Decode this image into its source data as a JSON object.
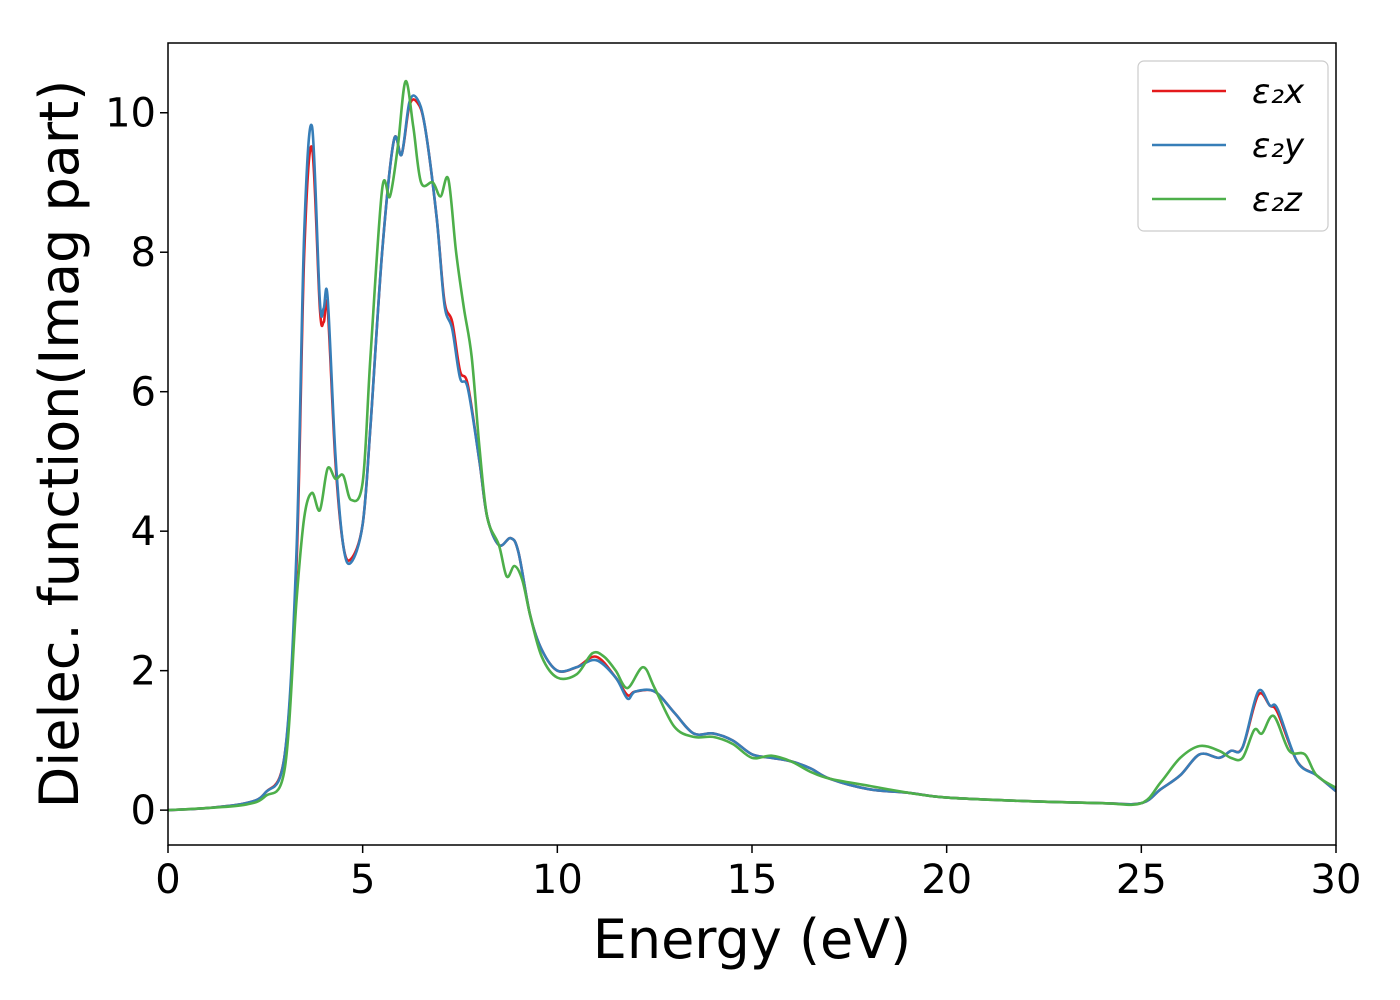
{
  "chart_data": {
    "type": "line",
    "title": "",
    "xlabel": "Energy (eV)",
    "ylabel": "Dielec. function(Imag part)",
    "xlim": [
      0,
      30
    ],
    "ylim": [
      -0.5,
      11.0
    ],
    "xticks": [
      0,
      5,
      10,
      15,
      20,
      25,
      30
    ],
    "yticks": [
      0,
      2,
      4,
      6,
      8,
      10
    ],
    "grid": false,
    "legend_position": "top-right",
    "series": [
      {
        "name": "ε₂x",
        "color": "#e41a1c",
        "points": [
          [
            0,
            0
          ],
          [
            1,
            0.03
          ],
          [
            2,
            0.1
          ],
          [
            2.5,
            0.25
          ],
          [
            3,
            0.8
          ],
          [
            3.3,
            3.5
          ],
          [
            3.5,
            8.0
          ],
          [
            3.7,
            9.5
          ],
          [
            3.9,
            7.2
          ],
          [
            4.0,
            7.0
          ],
          [
            4.1,
            7.2
          ],
          [
            4.3,
            5.0
          ],
          [
            4.5,
            3.8
          ],
          [
            4.7,
            3.6
          ],
          [
            5.0,
            4.1
          ],
          [
            5.2,
            5.5
          ],
          [
            5.5,
            8.0
          ],
          [
            5.8,
            9.6
          ],
          [
            6.0,
            9.4
          ],
          [
            6.2,
            10.1
          ],
          [
            6.4,
            10.15
          ],
          [
            6.6,
            9.8
          ],
          [
            6.9,
            8.5
          ],
          [
            7.1,
            7.3
          ],
          [
            7.3,
            7.0
          ],
          [
            7.5,
            6.3
          ],
          [
            7.7,
            6.1
          ],
          [
            8.0,
            5.0
          ],
          [
            8.2,
            4.2
          ],
          [
            8.5,
            3.8
          ],
          [
            8.8,
            3.9
          ],
          [
            9.0,
            3.7
          ],
          [
            9.3,
            2.8
          ],
          [
            9.6,
            2.3
          ],
          [
            10.0,
            2.0
          ],
          [
            10.5,
            2.05
          ],
          [
            11.0,
            2.2
          ],
          [
            11.5,
            1.9
          ],
          [
            11.8,
            1.65
          ],
          [
            12.0,
            1.7
          ],
          [
            12.5,
            1.7
          ],
          [
            13.0,
            1.4
          ],
          [
            13.5,
            1.1
          ],
          [
            14.0,
            1.1
          ],
          [
            14.5,
            1.0
          ],
          [
            15.0,
            0.8
          ],
          [
            15.5,
            0.75
          ],
          [
            16.0,
            0.7
          ],
          [
            16.5,
            0.6
          ],
          [
            17.0,
            0.45
          ],
          [
            18.0,
            0.3
          ],
          [
            19.0,
            0.25
          ],
          [
            20.0,
            0.18
          ],
          [
            22.0,
            0.13
          ],
          [
            24.0,
            0.1
          ],
          [
            25.0,
            0.1
          ],
          [
            25.5,
            0.3
          ],
          [
            26.0,
            0.5
          ],
          [
            26.5,
            0.8
          ],
          [
            27.0,
            0.75
          ],
          [
            27.3,
            0.85
          ],
          [
            27.6,
            0.9
          ],
          [
            28.0,
            1.65
          ],
          [
            28.3,
            1.5
          ],
          [
            28.5,
            1.4
          ],
          [
            29.0,
            0.7
          ],
          [
            29.5,
            0.5
          ],
          [
            30,
            0.27
          ]
        ]
      },
      {
        "name": "ε₂y",
        "color": "#377eb8",
        "points": [
          [
            0,
            0
          ],
          [
            1,
            0.03
          ],
          [
            2,
            0.1
          ],
          [
            2.5,
            0.25
          ],
          [
            3,
            0.8
          ],
          [
            3.3,
            3.7
          ],
          [
            3.5,
            8.3
          ],
          [
            3.7,
            9.8
          ],
          [
            3.9,
            7.3
          ],
          [
            4.0,
            7.2
          ],
          [
            4.1,
            7.35
          ],
          [
            4.3,
            5.1
          ],
          [
            4.5,
            3.8
          ],
          [
            4.7,
            3.55
          ],
          [
            5.0,
            4.1
          ],
          [
            5.2,
            5.5
          ],
          [
            5.5,
            8.0
          ],
          [
            5.8,
            9.6
          ],
          [
            6.0,
            9.4
          ],
          [
            6.2,
            10.15
          ],
          [
            6.4,
            10.2
          ],
          [
            6.6,
            9.8
          ],
          [
            6.9,
            8.5
          ],
          [
            7.1,
            7.25
          ],
          [
            7.3,
            6.9
          ],
          [
            7.5,
            6.2
          ],
          [
            7.7,
            6.05
          ],
          [
            8.0,
            5.0
          ],
          [
            8.2,
            4.2
          ],
          [
            8.5,
            3.8
          ],
          [
            8.8,
            3.9
          ],
          [
            9.0,
            3.7
          ],
          [
            9.3,
            2.8
          ],
          [
            9.6,
            2.3
          ],
          [
            10.0,
            2.0
          ],
          [
            10.5,
            2.05
          ],
          [
            11.0,
            2.15
          ],
          [
            11.5,
            1.9
          ],
          [
            11.8,
            1.6
          ],
          [
            12.0,
            1.7
          ],
          [
            12.5,
            1.7
          ],
          [
            13.0,
            1.4
          ],
          [
            13.5,
            1.1
          ],
          [
            14.0,
            1.1
          ],
          [
            14.5,
            1.0
          ],
          [
            15.0,
            0.8
          ],
          [
            15.5,
            0.75
          ],
          [
            16.0,
            0.7
          ],
          [
            16.5,
            0.6
          ],
          [
            17.0,
            0.45
          ],
          [
            18.0,
            0.3
          ],
          [
            19.0,
            0.25
          ],
          [
            20.0,
            0.18
          ],
          [
            22.0,
            0.13
          ],
          [
            24.0,
            0.1
          ],
          [
            25.0,
            0.1
          ],
          [
            25.5,
            0.3
          ],
          [
            26.0,
            0.5
          ],
          [
            26.5,
            0.8
          ],
          [
            27.0,
            0.75
          ],
          [
            27.3,
            0.85
          ],
          [
            27.6,
            0.9
          ],
          [
            28.0,
            1.7
          ],
          [
            28.3,
            1.5
          ],
          [
            28.5,
            1.45
          ],
          [
            29.0,
            0.7
          ],
          [
            29.5,
            0.5
          ],
          [
            30,
            0.27
          ]
        ]
      },
      {
        "name": "ε₂z",
        "color": "#4daf4a",
        "points": [
          [
            0,
            0
          ],
          [
            1,
            0.03
          ],
          [
            2,
            0.08
          ],
          [
            2.5,
            0.2
          ],
          [
            3,
            0.6
          ],
          [
            3.3,
            3.0
          ],
          [
            3.5,
            4.2
          ],
          [
            3.7,
            4.55
          ],
          [
            3.9,
            4.3
          ],
          [
            4.1,
            4.9
          ],
          [
            4.3,
            4.75
          ],
          [
            4.5,
            4.8
          ],
          [
            4.7,
            4.45
          ],
          [
            5.0,
            4.7
          ],
          [
            5.2,
            6.5
          ],
          [
            5.5,
            8.9
          ],
          [
            5.7,
            8.8
          ],
          [
            5.9,
            9.5
          ],
          [
            6.1,
            10.45
          ],
          [
            6.3,
            9.8
          ],
          [
            6.5,
            9.0
          ],
          [
            6.8,
            9.0
          ],
          [
            7.0,
            8.8
          ],
          [
            7.2,
            9.05
          ],
          [
            7.4,
            8.0
          ],
          [
            7.6,
            7.2
          ],
          [
            7.8,
            6.5
          ],
          [
            8.0,
            5.2
          ],
          [
            8.2,
            4.2
          ],
          [
            8.5,
            3.8
          ],
          [
            8.7,
            3.35
          ],
          [
            8.9,
            3.5
          ],
          [
            9.1,
            3.3
          ],
          [
            9.3,
            2.8
          ],
          [
            9.6,
            2.2
          ],
          [
            10.0,
            1.9
          ],
          [
            10.5,
            1.95
          ],
          [
            10.9,
            2.25
          ],
          [
            11.2,
            2.2
          ],
          [
            11.5,
            2.0
          ],
          [
            11.8,
            1.75
          ],
          [
            12.2,
            2.05
          ],
          [
            12.5,
            1.75
          ],
          [
            13.0,
            1.2
          ],
          [
            13.5,
            1.05
          ],
          [
            14.0,
            1.05
          ],
          [
            14.5,
            0.95
          ],
          [
            15.0,
            0.75
          ],
          [
            15.5,
            0.78
          ],
          [
            16.0,
            0.7
          ],
          [
            16.5,
            0.55
          ],
          [
            17.0,
            0.45
          ],
          [
            18.0,
            0.35
          ],
          [
            19.0,
            0.25
          ],
          [
            20.0,
            0.18
          ],
          [
            22.0,
            0.13
          ],
          [
            24.0,
            0.1
          ],
          [
            25.0,
            0.1
          ],
          [
            25.5,
            0.4
          ],
          [
            26.0,
            0.75
          ],
          [
            26.5,
            0.92
          ],
          [
            27.0,
            0.85
          ],
          [
            27.3,
            0.75
          ],
          [
            27.6,
            0.75
          ],
          [
            27.9,
            1.15
          ],
          [
            28.1,
            1.1
          ],
          [
            28.4,
            1.35
          ],
          [
            28.8,
            0.85
          ],
          [
            29.2,
            0.8
          ],
          [
            29.5,
            0.5
          ],
          [
            30,
            0.32
          ]
        ]
      }
    ]
  }
}
